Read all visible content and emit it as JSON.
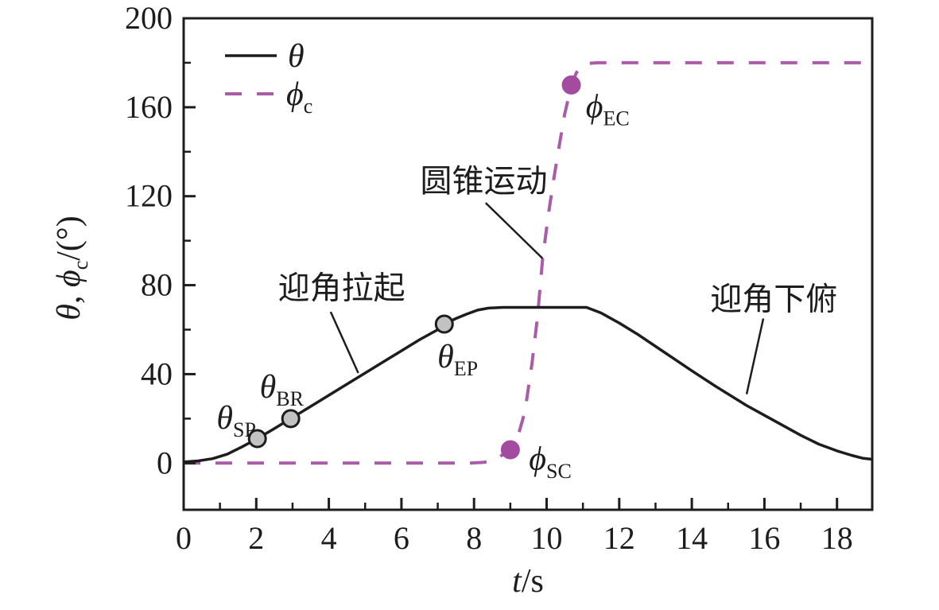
{
  "chart_data": {
    "type": "line",
    "title": "",
    "xlabel": [
      {
        "t": "t",
        "italic": true
      },
      {
        "t": "/s"
      }
    ],
    "ylabel": [
      {
        "t": "θ",
        "italic": true
      },
      {
        "t": ", "
      },
      {
        "t": "ϕ",
        "italic": true
      },
      {
        "t": "c",
        "sub": true
      },
      {
        "t": "/(°)"
      }
    ],
    "xlim": [
      0,
      18.97
    ],
    "ylim": [
      -21,
      200
    ],
    "x_major_ticks": [
      0,
      2,
      4,
      6,
      8,
      10,
      12,
      14,
      16,
      18
    ],
    "x_minor_ticks": [
      1,
      3,
      5,
      7,
      9,
      11,
      13,
      15,
      17
    ],
    "y_major_ticks": [
      0,
      40,
      80,
      120,
      160,
      200
    ],
    "y_minor_ticks": [
      20,
      60,
      100,
      140,
      180
    ],
    "grid": false,
    "legend_position": "top-left",
    "colors": {
      "theta_line": "#1d1d1d",
      "phi_line": "#a95ca7",
      "phi_marker": "#a34b9f",
      "gray_marker_fill": "#c2c2c2",
      "marker_edge": "#1d1d1d"
    },
    "legend": [
      {
        "id": "theta",
        "style": "solid",
        "label": [
          {
            "t": "θ",
            "italic": true
          }
        ]
      },
      {
        "id": "phi",
        "style": "dashed",
        "label": [
          {
            "t": "ϕ",
            "italic": true
          },
          {
            "t": "c",
            "sub": true
          }
        ]
      }
    ],
    "series": [
      {
        "id": "theta",
        "name": "pitch angle theta",
        "style": "solid",
        "points": [
          [
            0,
            0.5
          ],
          [
            0.4,
            1
          ],
          [
            0.8,
            2
          ],
          [
            1.2,
            4
          ],
          [
            1.6,
            7.2
          ],
          [
            2.03,
            11
          ],
          [
            2.5,
            15.5
          ],
          [
            2.95,
            20
          ],
          [
            3.5,
            25.5
          ],
          [
            4,
            30.5
          ],
          [
            4.5,
            35.5
          ],
          [
            5,
            40.5
          ],
          [
            5.5,
            45.5
          ],
          [
            6,
            50.5
          ],
          [
            6.5,
            55.5
          ],
          [
            7,
            60
          ],
          [
            7.18,
            62.5
          ],
          [
            7.5,
            65
          ],
          [
            7.8,
            67
          ],
          [
            8.1,
            68.8
          ],
          [
            8.4,
            69.7
          ],
          [
            8.8,
            70
          ],
          [
            11.1,
            70
          ],
          [
            11.5,
            67.5
          ],
          [
            12,
            63
          ],
          [
            12.5,
            58
          ],
          [
            13,
            52.5
          ],
          [
            13.5,
            47
          ],
          [
            14,
            41.5
          ],
          [
            14.66,
            34.5
          ],
          [
            15.5,
            26
          ],
          [
            16,
            21.5
          ],
          [
            16.5,
            17
          ],
          [
            17,
            12.5
          ],
          [
            17.5,
            8.5
          ],
          [
            18,
            5.5
          ],
          [
            18.4,
            3.5
          ],
          [
            18.7,
            2.2
          ],
          [
            18.97,
            1.7
          ]
        ]
      },
      {
        "id": "phi",
        "name": "coning angle phi_c",
        "style": "dashed",
        "points": [
          [
            0,
            0
          ],
          [
            7.9,
            0
          ],
          [
            8.25,
            0.3
          ],
          [
            8.5,
            1
          ],
          [
            8.7,
            2.8
          ],
          [
            9.0,
            6
          ],
          [
            9.2,
            11.5
          ],
          [
            9.4,
            23
          ],
          [
            9.6,
            45
          ],
          [
            9.75,
            66
          ],
          [
            9.89,
            92
          ],
          [
            10.05,
            112
          ],
          [
            10.2,
            128
          ],
          [
            10.35,
            143
          ],
          [
            10.5,
            157
          ],
          [
            10.68,
            170
          ],
          [
            10.82,
            175.5
          ],
          [
            10.95,
            178.3
          ],
          [
            11.15,
            179.7
          ],
          [
            11.4,
            180
          ],
          [
            18.97,
            180
          ]
        ]
      }
    ],
    "point_markers": [
      {
        "id": "theta-SP",
        "marker": "gray",
        "x": 2.03,
        "y": 11,
        "label": [
          {
            "t": "θ",
            "italic": true
          },
          {
            "t": "SP",
            "sub": true
          }
        ],
        "label_x": 1.45,
        "label_y": 20.5
      },
      {
        "id": "theta-BR",
        "marker": "gray",
        "x": 2.95,
        "y": 20,
        "label": [
          {
            "t": "θ",
            "italic": true
          },
          {
            "t": "BR",
            "sub": true
          }
        ],
        "label_x": 2.7,
        "label_y": 34.5
      },
      {
        "id": "theta-EP",
        "marker": "gray",
        "x": 7.18,
        "y": 62.5,
        "label": [
          {
            "t": "θ",
            "italic": true
          },
          {
            "t": "EP",
            "sub": true
          }
        ],
        "label_x": 7.55,
        "label_y": 48
      },
      {
        "id": "phi-SC",
        "marker": "purple",
        "x": 9.0,
        "y": 6,
        "label": [
          {
            "t": "ϕ",
            "italic": true
          },
          {
            "t": "SC",
            "sub": true
          }
        ],
        "label_x": 10.1,
        "label_y": 2
      },
      {
        "id": "phi-EC",
        "marker": "purple",
        "x": 10.68,
        "y": 170,
        "label": [
          {
            "t": "ϕ",
            "italic": true
          },
          {
            "t": "EC",
            "sub": true
          }
        ],
        "label_x": 11.68,
        "label_y": 160.5
      }
    ],
    "annotations": [
      {
        "id": "pull-up",
        "text": "迎角拉起",
        "x": 4.35,
        "y": 79,
        "leader": [
          [
            4.05,
            68
          ],
          [
            4.81,
            40.5
          ]
        ]
      },
      {
        "id": "coning",
        "text": "圆锥运动",
        "x": 8.27,
        "y": 127,
        "leader": [
          [
            8.32,
            117
          ],
          [
            9.89,
            92
          ]
        ]
      },
      {
        "id": "pitch-down",
        "text": "迎角下俯",
        "x": 16.26,
        "y": 74,
        "leader": [
          [
            15.97,
            65
          ],
          [
            15.51,
            31
          ]
        ]
      }
    ]
  }
}
